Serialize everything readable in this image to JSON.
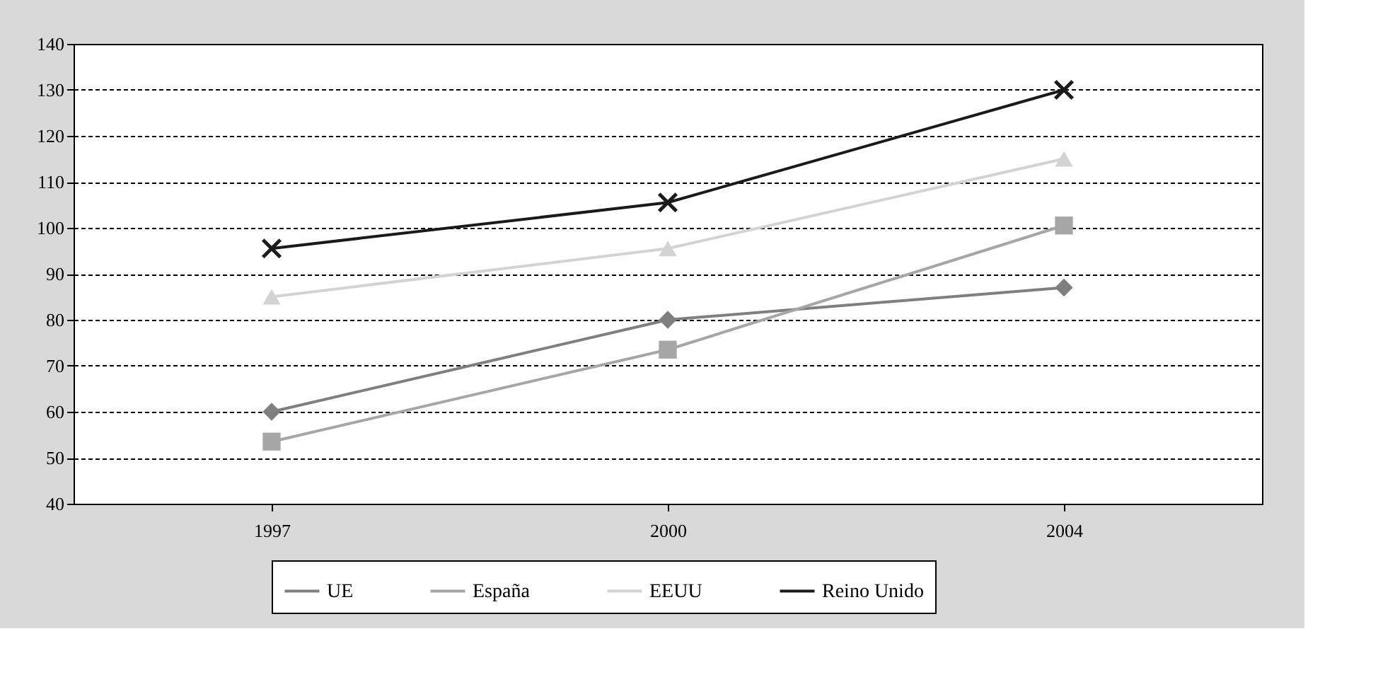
{
  "chart_data": {
    "type": "line",
    "categories": [
      "1997",
      "2000",
      "2004"
    ],
    "series": [
      {
        "name": "UE",
        "color": "#7f7f7f",
        "marker": "diamond",
        "values": [
          60,
          80,
          87
        ]
      },
      {
        "name": "España",
        "color": "#a6a6a6",
        "marker": "square",
        "values": [
          53.5,
          73.5,
          100.5
        ]
      },
      {
        "name": "EEUU",
        "color": "#d3d3d3",
        "marker": "triangle",
        "values": [
          85,
          95.5,
          115
        ]
      },
      {
        "name": "Reino Unido",
        "color": "#1a1a1a",
        "marker": "cross",
        "values": [
          95.5,
          105.5,
          130
        ]
      }
    ],
    "ylim": [
      40,
      140
    ],
    "yticks": [
      40,
      50,
      60,
      70,
      80,
      90,
      100,
      110,
      120,
      130,
      140
    ],
    "grid": "y",
    "legend": "bottom",
    "line_style": "solid"
  }
}
